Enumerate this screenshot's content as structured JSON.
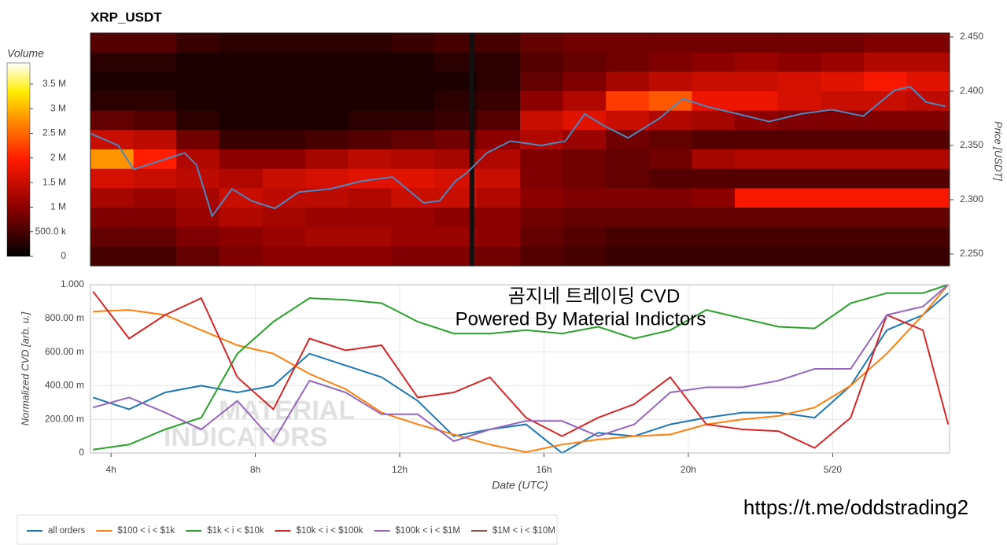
{
  "chart_data": [
    {
      "type": "heatmap",
      "title": "XRP_USDT",
      "ylabel": "Price [USDT]",
      "xlim": [
        3.43,
        27.24
      ],
      "ylim": [
        2.2391,
        2.4536
      ],
      "yticks": [
        {
          "value": 2.25,
          "label": "2.250"
        },
        {
          "value": 2.3,
          "label": "2.300"
        },
        {
          "value": 2.35,
          "label": "2.350"
        },
        {
          "value": 2.4,
          "label": "2.400"
        },
        {
          "value": 2.45,
          "label": "2.450"
        }
      ],
      "zlim": [
        0,
        3930000
      ],
      "colorbar": {
        "title": "Volume",
        "ticks": [
          0,
          {
            "value": 500000,
            "label": "500.0 k"
          },
          {
            "value": 1000000,
            "label": "1 M"
          },
          {
            "value": 1500000,
            "label": "1.5 M"
          },
          {
            "value": 2000000,
            "label": "2 M"
          },
          {
            "value": 2500000,
            "label": "2.5 M"
          },
          {
            "value": 3000000,
            "label": "3 M"
          },
          {
            "value": 3500000,
            "label": "3.5 M"
          }
        ]
      },
      "z": [
        [
          600000,
          600000,
          400000,
          300000,
          300000,
          300000,
          300000,
          400000,
          500000,
          500000,
          700000,
          800000,
          800000,
          800000,
          800000,
          800000,
          800000,
          800000,
          900000,
          900000
        ],
        [
          300000,
          300000,
          200000,
          200000,
          200000,
          200000,
          200000,
          200000,
          300000,
          300000,
          600000,
          700000,
          800000,
          900000,
          1000000,
          1100000,
          1000000,
          1100000,
          1300000,
          1300000
        ],
        [
          200000,
          200000,
          200000,
          200000,
          200000,
          200000,
          200000,
          200000,
          200000,
          300000,
          700000,
          900000,
          1200000,
          1400000,
          1500000,
          1500000,
          1600000,
          1700000,
          1900000,
          1700000
        ],
        [
          300000,
          300000,
          200000,
          200000,
          200000,
          200000,
          200000,
          200000,
          300000,
          400000,
          1000000,
          1300000,
          2200000,
          2400000,
          1800000,
          1800000,
          1600000,
          1500000,
          1500000,
          1400000
        ],
        [
          700000,
          600000,
          300000,
          200000,
          200000,
          200000,
          300000,
          300000,
          400000,
          600000,
          1500000,
          1700000,
          1500000,
          1300000,
          1200000,
          1000000,
          900000,
          900000,
          900000,
          900000
        ],
        [
          1500000,
          1400000,
          800000,
          400000,
          400000,
          500000,
          600000,
          700000,
          800000,
          1000000,
          1300000,
          1100000,
          800000,
          700000,
          600000,
          600000,
          600000,
          600000,
          600000,
          600000
        ],
        [
          2800000,
          2000000,
          1300000,
          1000000,
          1000000,
          1200000,
          1400000,
          1300000,
          1200000,
          1300000,
          900000,
          800000,
          700000,
          800000,
          1200000,
          1300000,
          1300000,
          1300000,
          1300000,
          1300000
        ],
        [
          1600000,
          1500000,
          1400000,
          1300000,
          1500000,
          1600000,
          1700000,
          1700000,
          1600000,
          1500000,
          900000,
          800000,
          700000,
          600000,
          600000,
          600000,
          600000,
          600000,
          600000,
          600000
        ],
        [
          1200000,
          1100000,
          1200000,
          1500000,
          1400000,
          1400000,
          1300000,
          1500000,
          1500000,
          1300000,
          1000000,
          900000,
          900000,
          900000,
          1000000,
          1900000,
          1900000,
          1900000,
          1900000,
          1900000
        ],
        [
          900000,
          900000,
          1100000,
          1300000,
          1200000,
          1100000,
          1100000,
          1100000,
          1000000,
          1000000,
          800000,
          700000,
          700000,
          700000,
          700000,
          700000,
          700000,
          700000,
          700000,
          700000
        ],
        [
          700000,
          700000,
          900000,
          1000000,
          1100000,
          1200000,
          1200000,
          1100000,
          1100000,
          1000000,
          700000,
          600000,
          500000,
          500000,
          500000,
          500000,
          500000,
          500000,
          500000,
          500000
        ],
        [
          500000,
          500000,
          700000,
          900000,
          1000000,
          1000000,
          1000000,
          900000,
          900000,
          800000,
          600000,
          500000,
          400000,
          400000,
          400000,
          400000,
          400000,
          400000,
          400000,
          400000
        ]
      ],
      "price": {
        "color": "#4f86c0",
        "x": [
          3.43,
          4.2,
          4.63,
          5.28,
          6.04,
          6.37,
          6.8,
          7.35,
          7.89,
          8.54,
          9.2,
          10.07,
          10.93,
          11.8,
          12.67,
          13.11,
          13.54,
          13.87,
          14.41,
          15.07,
          15.93,
          16.59,
          17.13,
          17.67,
          18.33,
          19.2,
          19.85,
          20.5,
          21.37,
          22.24,
          23.11,
          23.98,
          24.85,
          25.72,
          26.15,
          26.59,
          27.13
        ],
        "values": [
          2.361,
          2.35,
          2.328,
          2.335,
          2.343,
          2.332,
          2.285,
          2.31,
          2.299,
          2.292,
          2.307,
          2.31,
          2.317,
          2.321,
          2.297,
          2.299,
          2.317,
          2.325,
          2.343,
          2.354,
          2.35,
          2.354,
          2.379,
          2.368,
          2.357,
          2.375,
          2.393,
          2.386,
          2.379,
          2.372,
          2.379,
          2.383,
          2.377,
          2.401,
          2.404,
          2.39,
          2.386
        ]
      }
    },
    {
      "type": "line",
      "xlabel": "Date (UTC)",
      "ylabel": "Normalized CVD [arb. u.]",
      "xlim": [
        3.43,
        27.24
      ],
      "xticks": [
        {
          "value": 4,
          "label": "4h"
        },
        {
          "value": 8,
          "label": "8h"
        },
        {
          "value": 12,
          "label": "12h"
        },
        {
          "value": 16,
          "label": "16h"
        },
        {
          "value": 20,
          "label": "20h"
        },
        {
          "value": 24,
          "label": "5/20"
        }
      ],
      "ylim": [
        0,
        1
      ],
      "yticks": [
        0,
        {
          "value": 0.2,
          "label": "200.00 m"
        },
        {
          "value": 0.4,
          "label": "400.00 m"
        },
        {
          "value": 0.6,
          "label": "600.00 m"
        },
        {
          "value": 0.8,
          "label": "800.00 m"
        },
        {
          "value": 1,
          "label": "1.000"
        }
      ],
      "grid": true,
      "annotations": [
        "곰지네 트레이딩 CVD",
        "Powered By Material Indictors"
      ],
      "x": [
        3.5,
        4.5,
        5.5,
        6.5,
        7.5,
        8.5,
        9.5,
        10.5,
        11.5,
        12.5,
        13.5,
        14.5,
        15.5,
        16.5,
        17.5,
        18.5,
        19.5,
        20.5,
        21.5,
        22.5,
        23.5,
        24.5,
        25.5,
        26.5,
        27.2
      ],
      "series": [
        {
          "name": "all orders",
          "color": "#1f77b4",
          "values": [
            0.33,
            0.26,
            0.36,
            0.4,
            0.36,
            0.4,
            0.59,
            0.52,
            0.45,
            0.31,
            0.1,
            0.14,
            0.17,
            0.0,
            0.12,
            0.1,
            0.17,
            0.21,
            0.24,
            0.24,
            0.21,
            0.4,
            0.73,
            0.82,
            0.95
          ]
        },
        {
          "name": "$100 < i < $1k",
          "color": "#ff7f0e",
          "values": [
            0.84,
            0.85,
            0.82,
            0.73,
            0.64,
            0.59,
            0.47,
            0.38,
            0.24,
            0.17,
            0.11,
            0.05,
            0.005,
            0.05,
            0.08,
            0.1,
            0.11,
            0.17,
            0.2,
            0.22,
            0.27,
            0.4,
            0.59,
            0.82,
            1.0
          ]
        },
        {
          "name": "$1k < i < $10k",
          "color": "#2ca02c",
          "values": [
            0.02,
            0.05,
            0.14,
            0.21,
            0.59,
            0.78,
            0.92,
            0.91,
            0.89,
            0.78,
            0.71,
            0.71,
            0.73,
            0.71,
            0.75,
            0.68,
            0.73,
            0.85,
            0.8,
            0.75,
            0.74,
            0.89,
            0.95,
            0.95,
            1.0
          ]
        },
        {
          "name": "$10k < i < $100k",
          "color": "#d62728",
          "values": [
            0.96,
            0.68,
            0.82,
            0.92,
            0.45,
            0.26,
            0.68,
            0.61,
            0.64,
            0.33,
            0.36,
            0.45,
            0.21,
            0.1,
            0.21,
            0.29,
            0.45,
            0.17,
            0.14,
            0.13,
            0.03,
            0.21,
            0.82,
            0.73,
            0.17
          ]
        },
        {
          "name": "$100k < i < $1M",
          "color": "#9467bd",
          "values": [
            0.27,
            0.33,
            0.24,
            0.14,
            0.31,
            0.07,
            0.43,
            0.36,
            0.23,
            0.23,
            0.07,
            0.14,
            0.19,
            0.19,
            0.1,
            0.17,
            0.36,
            0.39,
            0.39,
            0.43,
            0.5,
            0.5,
            0.82,
            0.87,
            1.0
          ]
        },
        {
          "name": "$1M < i < $10M",
          "color": "#8c564b",
          "values": [
            null,
            null,
            null,
            null,
            null,
            null,
            null,
            null,
            null,
            null,
            null,
            null,
            null,
            null,
            null,
            null,
            null,
            null,
            null,
            null,
            null,
            null,
            null,
            null,
            null
          ]
        }
      ]
    }
  ],
  "watermark": [
    "MATERIAL",
    "INDICATORS"
  ],
  "footer_url": "https://t.me/oddstrading2"
}
